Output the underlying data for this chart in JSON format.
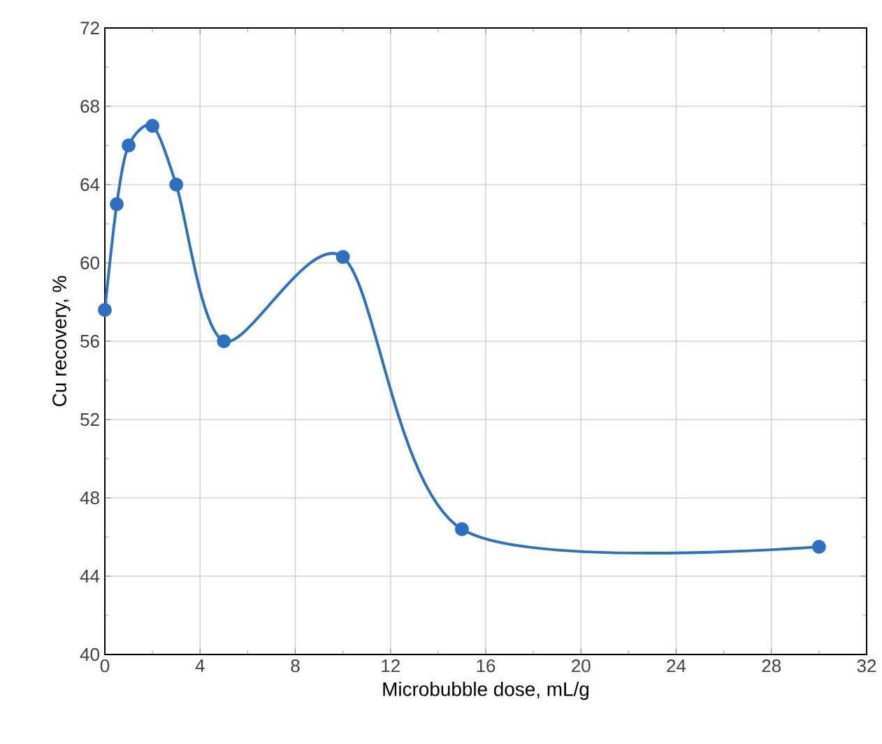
{
  "chart_data": {
    "type": "line",
    "xlabel": "Microbubble dose, mL/g",
    "ylabel": "Cu recovery, %",
    "x": [
      0,
      0.5,
      1,
      2,
      3,
      5,
      10,
      15,
      30
    ],
    "series": [
      {
        "color": "#2e6fbf",
        "values": [
          57.6,
          63,
          66,
          67,
          64,
          56,
          60.3,
          46.4,
          45.5
        ]
      }
    ],
    "xlim": [
      0,
      32
    ],
    "xticks": [
      0,
      4,
      8,
      12,
      16,
      20,
      24,
      28,
      32
    ],
    "ylim": [
      40,
      72
    ],
    "yticks": [
      40,
      44,
      48,
      52,
      56,
      60,
      64,
      68,
      72
    ],
    "grid": true,
    "marker": "circle",
    "line_style": "solid"
  }
}
